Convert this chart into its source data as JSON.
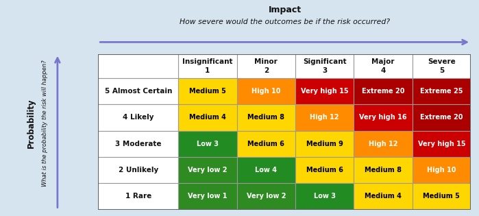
{
  "title_line1": "Impact",
  "title_line2": "How severe would the outcomes be if the risk occurred?",
  "ylabel_line1": "Probability",
  "ylabel_line2": "What is the probability the risk will happen?",
  "col_headers": [
    "Insignificant\n1",
    "Minor\n2",
    "Significant\n3",
    "Major\n4",
    "Severe\n5"
  ],
  "row_headers": [
    "5 Almost Certain",
    "4 Likely",
    "3 Moderate",
    "2 Unlikely",
    "1 Rare"
  ],
  "cell_texts": [
    [
      "Medium 5",
      "High 10",
      "Very high 15",
      "Extreme 20",
      "Extreme 25"
    ],
    [
      "Medium 4",
      "Medium 8",
      "High 12",
      "Very high 16",
      "Extreme 20"
    ],
    [
      "Low 3",
      "Medium 6",
      "Medium 9",
      "High 12",
      "Very high 15"
    ],
    [
      "Very low 2",
      "Low 4",
      "Medium 6",
      "Medium 8",
      "High 10"
    ],
    [
      "Very low 1",
      "Very low 2",
      "Low 3",
      "Medium 4",
      "Medium 5"
    ]
  ],
  "cell_colors": [
    [
      "#FFD700",
      "#FF8C00",
      "#CC0000",
      "#AA0000",
      "#AA0000"
    ],
    [
      "#FFD700",
      "#FFD700",
      "#FF8C00",
      "#CC0000",
      "#AA0000"
    ],
    [
      "#228B22",
      "#FFD700",
      "#FFD700",
      "#FF8C00",
      "#CC0000"
    ],
    [
      "#2E8B22",
      "#228B22",
      "#FFD700",
      "#FFD700",
      "#FF8C00"
    ],
    [
      "#2E8B22",
      "#2E8B22",
      "#228B22",
      "#FFD700",
      "#FFD700"
    ]
  ],
  "cell_text_colors": [
    [
      "#000000",
      "#FFFFFF",
      "#FFFFFF",
      "#FFFFFF",
      "#FFFFFF"
    ],
    [
      "#000000",
      "#000000",
      "#FFFFFF",
      "#FFFFFF",
      "#FFFFFF"
    ],
    [
      "#FFFFFF",
      "#000000",
      "#000000",
      "#FFFFFF",
      "#FFFFFF"
    ],
    [
      "#FFFFFF",
      "#FFFFFF",
      "#000000",
      "#000000",
      "#FFFFFF"
    ],
    [
      "#FFFFFF",
      "#FFFFFF",
      "#FFFFFF",
      "#000000",
      "#000000"
    ]
  ],
  "background_color": "#D6E4F0",
  "arrow_color": "#7777CC",
  "header_bg": "#FFFFFF",
  "row_header_bg": "#FFFFFF",
  "grid_color": "#999999"
}
